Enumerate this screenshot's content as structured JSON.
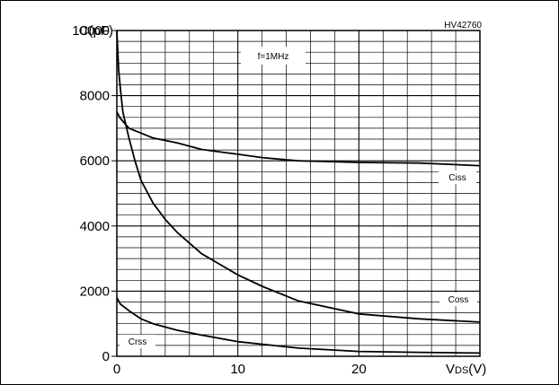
{
  "chart_data": {
    "type": "line",
    "code": "HV42760",
    "condition": "f=1MHz",
    "ylabel": "C(pF)",
    "xlabel": {
      "main": "V",
      "sub": "DS",
      "unit": "(V)"
    },
    "xlim": [
      0,
      30
    ],
    "ylim": [
      0,
      10000
    ],
    "x_ticks": [
      0,
      10,
      20
    ],
    "y_ticks": [
      0,
      2000,
      4000,
      6000,
      8000,
      10000
    ],
    "grid": true,
    "series": [
      {
        "name": "Ciss",
        "x": [
          0,
          0.3,
          1,
          2,
          3,
          5,
          7,
          10,
          12,
          15,
          17,
          20,
          25,
          30
        ],
        "y": [
          7500,
          7300,
          7000,
          6850,
          6700,
          6550,
          6350,
          6200,
          6100,
          6000,
          5980,
          5950,
          5930,
          5850
        ]
      },
      {
        "name": "Coss",
        "x": [
          0,
          0.15,
          0.3,
          0.5,
          1,
          1.5,
          2,
          3,
          4,
          5,
          7,
          10,
          12,
          15,
          20,
          25,
          30
        ],
        "y": [
          10000,
          8800,
          8200,
          7500,
          6700,
          6000,
          5400,
          4700,
          4200,
          3800,
          3150,
          2500,
          2150,
          1700,
          1300,
          1150,
          1050
        ]
      },
      {
        "name": "Crss",
        "x": [
          0,
          0.3,
          1,
          2,
          3,
          5,
          7,
          10,
          15,
          20,
          25,
          30
        ],
        "y": [
          1800,
          1600,
          1400,
          1150,
          1000,
          800,
          650,
          450,
          250,
          150,
          120,
          100
        ]
      }
    ]
  }
}
